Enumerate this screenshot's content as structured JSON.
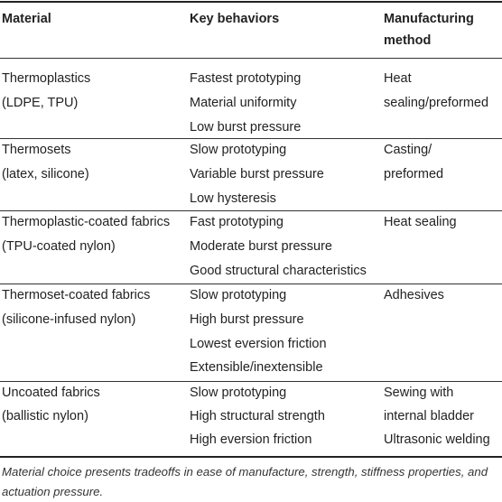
{
  "header": {
    "material": "Material",
    "behaviors": "Key behaviors",
    "method_line1": "Manufacturing",
    "method_line2": "method"
  },
  "rows": [
    {
      "material": [
        "Thermoplastics",
        "(LDPE, TPU)"
      ],
      "behaviors": [
        "Fastest prototyping",
        "Material uniformity",
        "Low burst pressure"
      ],
      "method": [
        "Heat",
        "sealing/preformed"
      ]
    },
    {
      "material": [
        "Thermosets",
        "(latex, silicone)"
      ],
      "behaviors": [
        "Slow prototyping",
        "Variable burst pressure",
        "Low hysteresis"
      ],
      "method": [
        "Casting/",
        "preformed"
      ]
    },
    {
      "material": [
        "Thermoplastic-coated fabrics",
        "(TPU-coated nylon)"
      ],
      "behaviors": [
        "Fast prototyping",
        "Moderate burst pressure",
        "Good structural characteristics"
      ],
      "method": [
        "Heat sealing"
      ]
    },
    {
      "material": [
        "Thermoset-coated fabrics",
        "(silicone-infused nylon)"
      ],
      "behaviors": [
        "Slow prototyping",
        "High burst pressure",
        "Lowest eversion friction",
        "Extensible/inextensible"
      ],
      "method": [
        "Adhesives"
      ]
    },
    {
      "material": [
        "Uncoated fabrics",
        "(ballistic nylon)"
      ],
      "behaviors": [
        "Slow prototyping",
        "High structural strength",
        "High eversion friction"
      ],
      "method": [
        "Sewing with",
        "internal bladder",
        "Ultrasonic welding"
      ]
    }
  ],
  "caption": "Material choice presents tradeoffs in ease of manufacture, strength, stiffness properties, and actuation pressure."
}
